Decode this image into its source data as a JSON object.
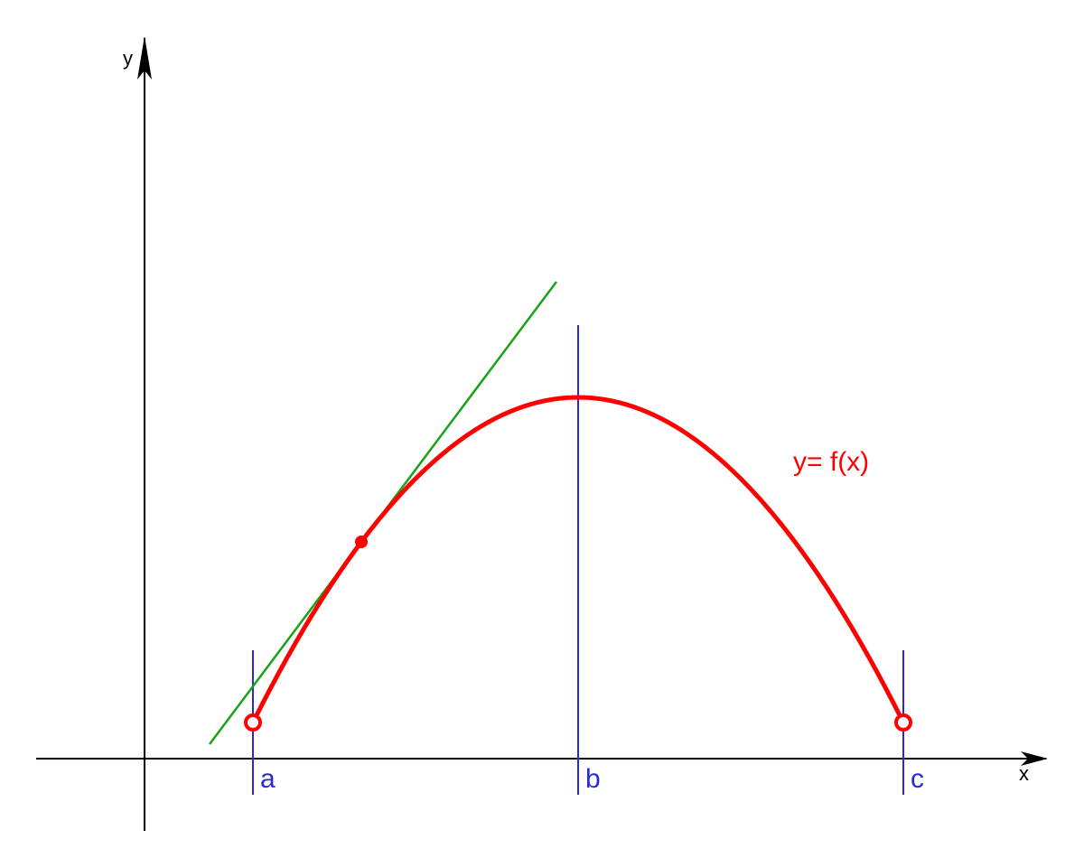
{
  "axes": {
    "x_label": "x",
    "y_label": "y",
    "color": "#000000"
  },
  "function": {
    "label": "y= f(x)",
    "color": "#ff0000"
  },
  "markers": [
    {
      "label": "a"
    },
    {
      "label": "b"
    },
    {
      "label": "c"
    }
  ],
  "colors": {
    "markers": "#2a2ad6",
    "tangent": "#1aa11a",
    "background": "#ffffff"
  },
  "points": {
    "open_endpoints": [
      "a",
      "c"
    ],
    "tangent_point": "filled"
  }
}
